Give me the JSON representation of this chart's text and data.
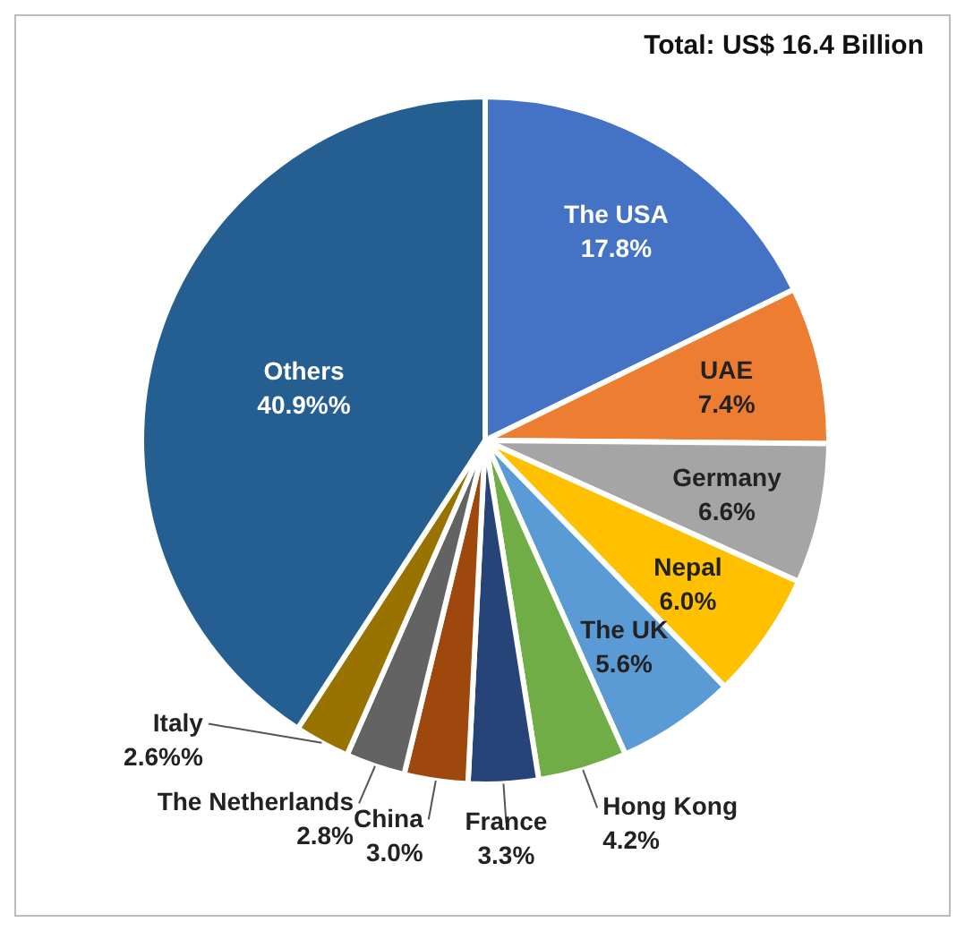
{
  "chart_data": {
    "type": "pie",
    "categories": [
      "The USA",
      "UAE",
      "Germany",
      "Nepal",
      "The UK",
      "Hong Kong",
      "France",
      "China",
      "The Netherlands",
      "Italy",
      "Others"
    ],
    "values": [
      17.8,
      7.4,
      6.6,
      6.0,
      5.6,
      4.2,
      3.3,
      3.0,
      2.8,
      2.6,
      40.9
    ],
    "value_labels": [
      "17.8%",
      "7.4%",
      "6.6%",
      "6.0%",
      "5.6%",
      "4.2%",
      "3.3%",
      "3.0%",
      "2.8%",
      "2.6%%",
      "40.9%%"
    ],
    "colors": [
      "#4472c4",
      "#ed7d31",
      "#a5a5a5",
      "#ffc000",
      "#5b9bd5",
      "#70ad47",
      "#264478",
      "#9e480e",
      "#636363",
      "#997300",
      "#255e91"
    ],
    "annotations": [
      "Total: US$ 16.4 Billion"
    ],
    "legend": false
  }
}
